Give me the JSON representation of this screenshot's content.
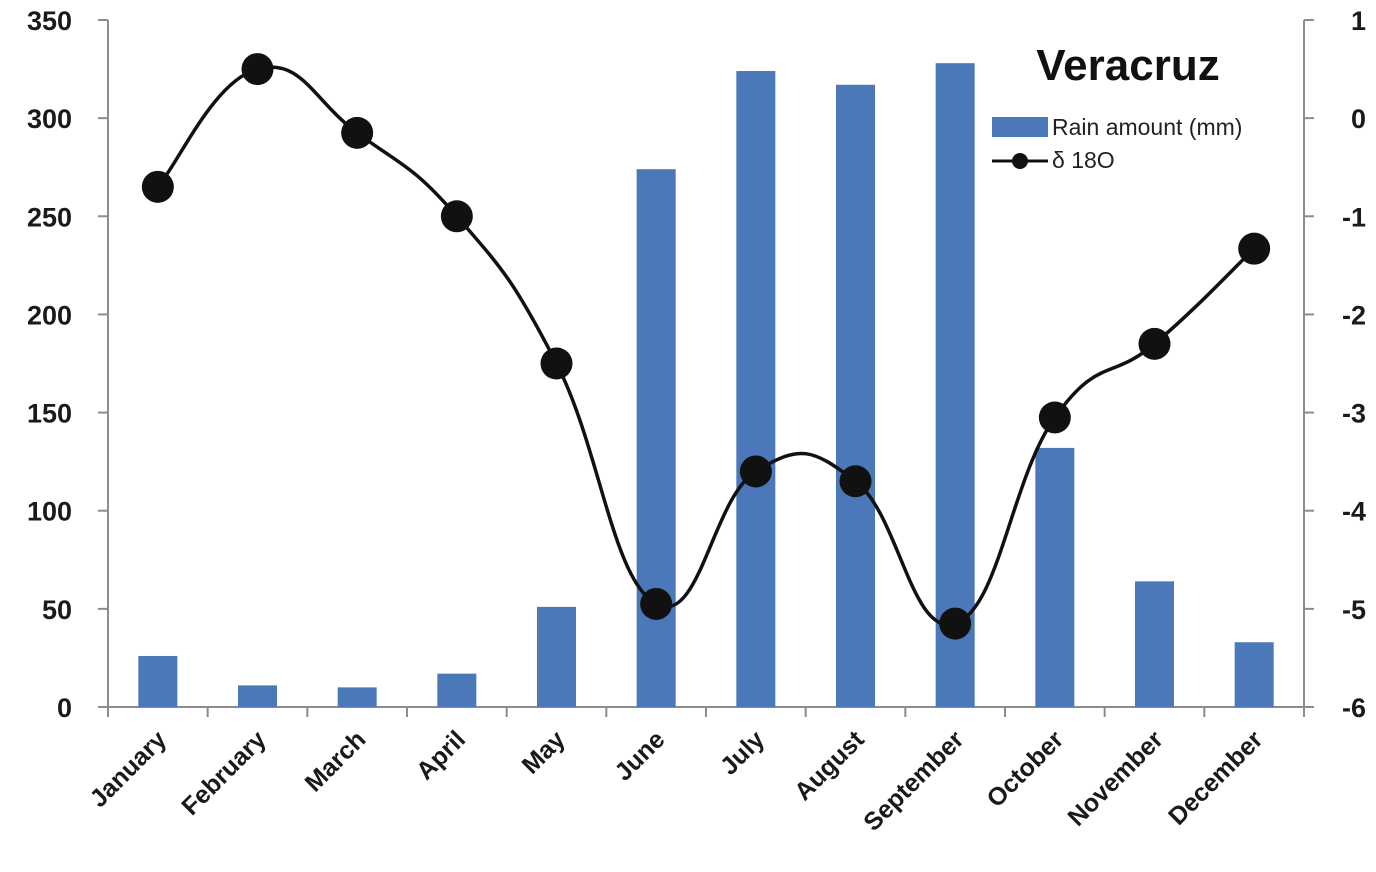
{
  "chart_data": {
    "type": "bar",
    "title": "Veracruz",
    "categories": [
      "January",
      "February",
      "March",
      "April",
      "May",
      "June",
      "July",
      "August",
      "September",
      "October",
      "November",
      "December"
    ],
    "series": [
      {
        "name": "Rain amount (mm)",
        "type": "bar",
        "axis": "left",
        "color": "#4a78b8",
        "values": [
          26,
          11,
          10,
          17,
          51,
          274,
          324,
          317,
          328,
          132,
          64,
          33
        ]
      },
      {
        "name": "δ 18O",
        "type": "line",
        "axis": "right",
        "color": "#111111",
        "values": [
          -0.7,
          0.5,
          -0.15,
          -1.0,
          -2.5,
          -4.95,
          -3.6,
          -3.7,
          -5.15,
          -3.05,
          -2.3,
          -1.33
        ]
      }
    ],
    "y_left": {
      "ylim": [
        0,
        350
      ],
      "ticks": [
        "0",
        "50",
        "100",
        "150",
        "200",
        "250",
        "300",
        "350"
      ]
    },
    "y_right": {
      "ylim": [
        -6,
        1
      ],
      "ticks": [
        "-6",
        "-5",
        "-4",
        "-3",
        "-2",
        "-1",
        "0",
        "1"
      ]
    },
    "legend_position": "top-right",
    "grid": false
  }
}
